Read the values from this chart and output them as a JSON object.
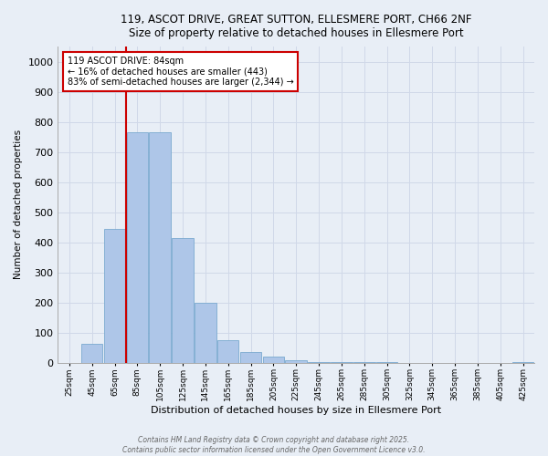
{
  "title_line1": "119, ASCOT DRIVE, GREAT SUTTON, ELLESMERE PORT, CH66 2NF",
  "title_line2": "Size of property relative to detached houses in Ellesmere Port",
  "xlabel": "Distribution of detached houses by size in Ellesmere Port",
  "ylabel": "Number of detached properties",
  "categories": [
    "25sqm",
    "45sqm",
    "65sqm",
    "85sqm",
    "105sqm",
    "125sqm",
    "145sqm",
    "165sqm",
    "185sqm",
    "205sqm",
    "225sqm",
    "245sqm",
    "265sqm",
    "285sqm",
    "305sqm",
    "325sqm",
    "345sqm",
    "365sqm",
    "385sqm",
    "405sqm",
    "425sqm"
  ],
  "values": [
    0,
    62,
    443,
    765,
    765,
    415,
    200,
    75,
    35,
    20,
    8,
    3,
    2,
    1,
    1,
    0,
    0,
    0,
    0,
    0,
    2
  ],
  "bar_color": "#aec6e8",
  "bar_edge_color": "#7aaad0",
  "grid_color": "#d0d8e8",
  "background_color": "#e8eef6",
  "annotation_box_color": "#ffffff",
  "annotation_border_color": "#cc0000",
  "red_line_color": "#cc0000",
  "annotation_line1": "119 ASCOT DRIVE: 84sqm",
  "annotation_line2": "← 16% of detached houses are smaller (443)",
  "annotation_line3": "83% of semi-detached houses are larger (2,344) →",
  "property_size_sqm": 84,
  "ylim": [
    0,
    1050
  ],
  "yticks": [
    0,
    100,
    200,
    300,
    400,
    500,
    600,
    700,
    800,
    900,
    1000
  ],
  "footnote1": "Contains HM Land Registry data © Crown copyright and database right 2025.",
  "footnote2": "Contains public sector information licensed under the Open Government Licence v3.0."
}
